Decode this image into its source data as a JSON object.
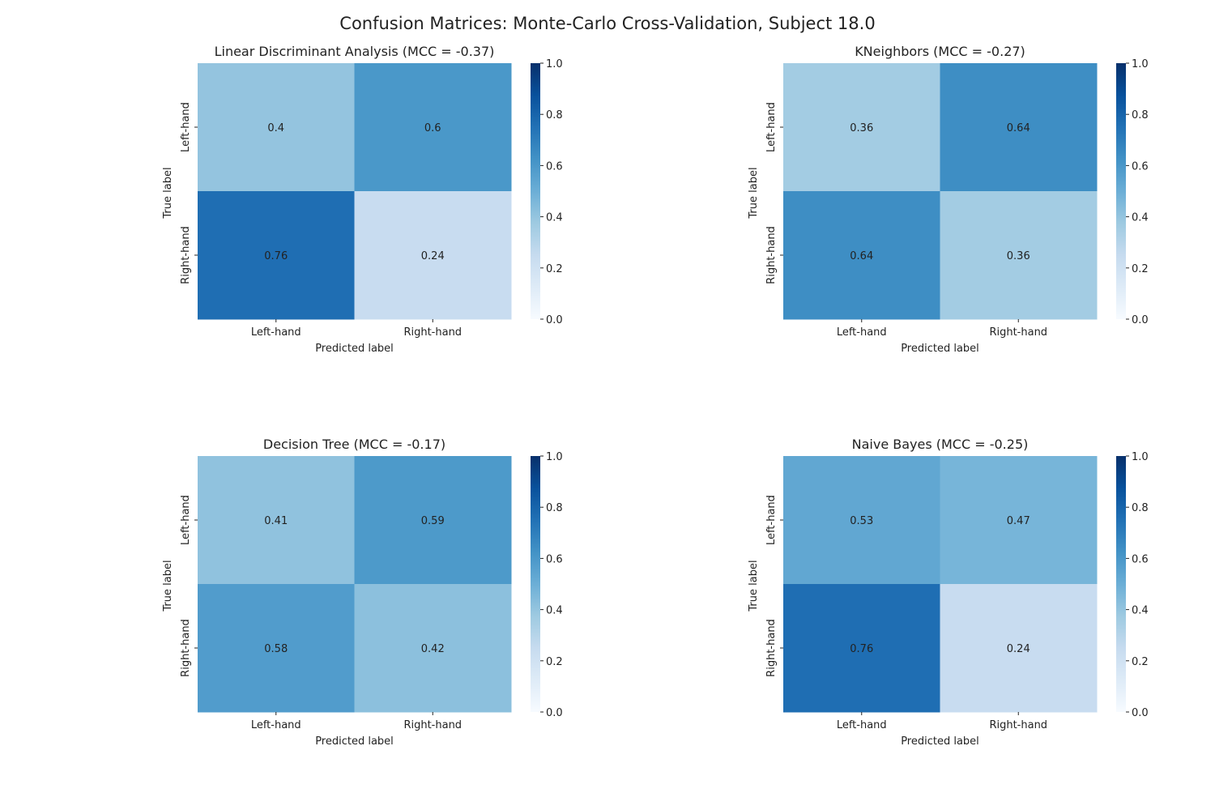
{
  "figure_title": "Confusion Matrices: Monte-Carlo Cross-Validation, Subject 18.0",
  "colormap": "Blues",
  "colors": {
    "cmap_low": "#f7fbff",
    "cmap_high": "#08306b",
    "text_dark": "#262626",
    "text_light": "#ffffff"
  },
  "chart_data": [
    {
      "type": "heatmap",
      "title": "Linear Discriminant Analysis (MCC = -0.37)",
      "xlabel": "Predicted label",
      "ylabel": "True label",
      "x_categories": [
        "Left-hand",
        "Right-hand"
      ],
      "y_categories": [
        "Left-hand",
        "Right-hand"
      ],
      "values": [
        [
          0.4,
          0.6
        ],
        [
          0.76,
          0.24
        ]
      ],
      "cell_labels": [
        [
          "0.4",
          "0.6"
        ],
        [
          "0.76",
          "0.24"
        ]
      ],
      "colorbar": {
        "range": [
          0.0,
          1.0
        ],
        "ticks": [
          "0.0",
          "0.2",
          "0.4",
          "0.6",
          "0.8",
          "1.0"
        ]
      }
    },
    {
      "type": "heatmap",
      "title": "KNeighbors (MCC = -0.27)",
      "xlabel": "Predicted label",
      "ylabel": "True label",
      "x_categories": [
        "Left-hand",
        "Right-hand"
      ],
      "y_categories": [
        "Left-hand",
        "Right-hand"
      ],
      "values": [
        [
          0.36,
          0.64
        ],
        [
          0.64,
          0.36
        ]
      ],
      "cell_labels": [
        [
          "0.36",
          "0.64"
        ],
        [
          "0.64",
          "0.36"
        ]
      ],
      "colorbar": {
        "range": [
          0.0,
          1.0
        ],
        "ticks": [
          "0.0",
          "0.2",
          "0.4",
          "0.6",
          "0.8",
          "1.0"
        ]
      }
    },
    {
      "type": "heatmap",
      "title": "Decision Tree (MCC = -0.17)",
      "xlabel": "Predicted label",
      "ylabel": "True label",
      "x_categories": [
        "Left-hand",
        "Right-hand"
      ],
      "y_categories": [
        "Left-hand",
        "Right-hand"
      ],
      "values": [
        [
          0.41,
          0.59
        ],
        [
          0.58,
          0.42
        ]
      ],
      "cell_labels": [
        [
          "0.41",
          "0.59"
        ],
        [
          "0.58",
          "0.42"
        ]
      ],
      "colorbar": {
        "range": [
          0.0,
          1.0
        ],
        "ticks": [
          "0.0",
          "0.2",
          "0.4",
          "0.6",
          "0.8",
          "1.0"
        ]
      }
    },
    {
      "type": "heatmap",
      "title": "Naive Bayes (MCC = -0.25)",
      "xlabel": "Predicted label",
      "ylabel": "True label",
      "x_categories": [
        "Left-hand",
        "Right-hand"
      ],
      "y_categories": [
        "Left-hand",
        "Right-hand"
      ],
      "values": [
        [
          0.53,
          0.47
        ],
        [
          0.76,
          0.24
        ]
      ],
      "cell_labels": [
        [
          "0.53",
          "0.47"
        ],
        [
          "0.76",
          "0.24"
        ]
      ],
      "colorbar": {
        "range": [
          0.0,
          1.0
        ],
        "ticks": [
          "0.0",
          "0.2",
          "0.4",
          "0.6",
          "0.8",
          "1.0"
        ]
      }
    }
  ]
}
